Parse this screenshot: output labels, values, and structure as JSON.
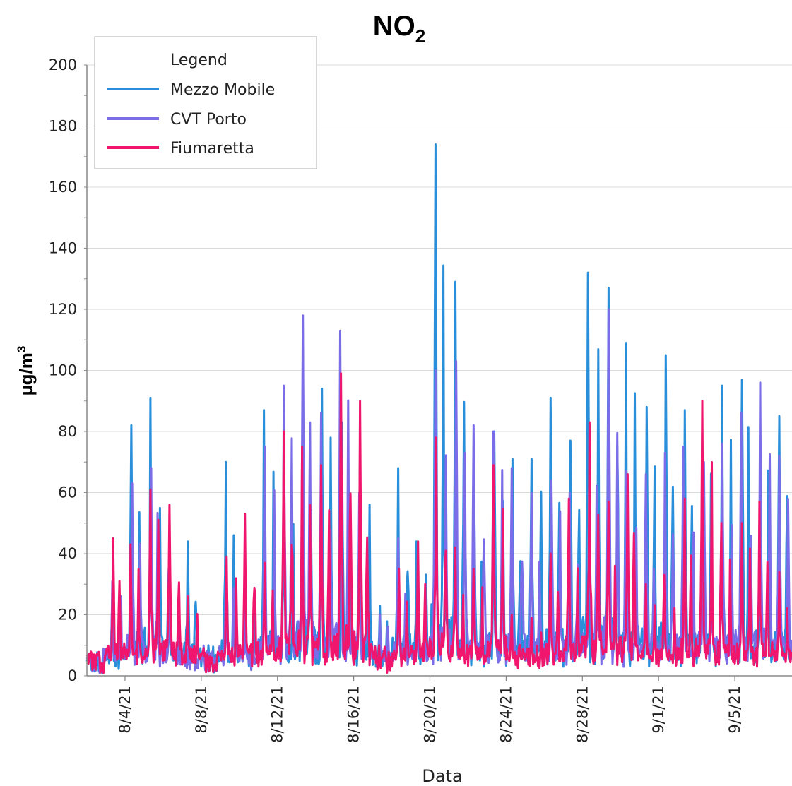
{
  "chart_data": {
    "type": "line",
    "title": "NO",
    "title_subscript": "2",
    "xlabel": "Data",
    "ylabel": "µg/m",
    "ylabel_superscript": "3",
    "ylim": [
      0,
      200
    ],
    "yticks": [
      0,
      20,
      40,
      60,
      80,
      100,
      120,
      140,
      160,
      180,
      200
    ],
    "grid": true,
    "x_start": "2021-08-02",
    "x_end": "2021-09-08",
    "xticks": [
      "8/4/21",
      "8/8/21",
      "8/12/21",
      "8/16/21",
      "8/20/21",
      "8/24/21",
      "8/28/21",
      "9/1/21",
      "9/5/21"
    ],
    "legend": {
      "title": "Legend",
      "position": "top-left"
    },
    "series": [
      {
        "name": "Mezzo Mobile",
        "color": "#2a8fdb",
        "x": [
          "2021-08-02",
          "2021-08-03",
          "2021-08-04",
          "2021-08-05",
          "2021-08-06",
          "2021-08-07",
          "2021-08-08",
          "2021-08-09",
          "2021-08-10",
          "2021-08-11",
          "2021-08-12",
          "2021-08-13",
          "2021-08-14",
          "2021-08-15",
          "2021-08-16",
          "2021-08-17",
          "2021-08-18",
          "2021-08-19",
          "2021-08-20",
          "2021-08-21",
          "2021-08-22",
          "2021-08-23",
          "2021-08-24",
          "2021-08-25",
          "2021-08-26",
          "2021-08-27",
          "2021-08-28",
          "2021-08-29",
          "2021-08-30",
          "2021-08-31",
          "2021-09-01",
          "2021-09-02",
          "2021-09-03",
          "2021-09-04",
          "2021-09-05",
          "2021-09-06",
          "2021-09-07",
          "2021-09-08"
        ],
        "y": [
          6,
          25,
          82,
          91,
          35,
          44,
          10,
          70,
          36,
          87,
          64,
          107,
          94,
          83,
          75,
          23,
          68,
          44,
          174,
          129,
          51,
          80,
          71,
          71,
          91,
          77,
          132,
          127,
          109,
          88,
          105,
          87,
          81,
          95,
          97,
          82,
          85,
          66
        ]
      },
      {
        "name": "CVT Porto",
        "color": "#7b6ce8",
        "x": [
          "2021-08-02",
          "2021-08-03",
          "2021-08-04",
          "2021-08-05",
          "2021-08-06",
          "2021-08-07",
          "2021-08-08",
          "2021-08-09",
          "2021-08-10",
          "2021-08-11",
          "2021-08-12",
          "2021-08-13",
          "2021-08-14",
          "2021-08-15",
          "2021-08-16",
          "2021-08-17",
          "2021-08-18",
          "2021-08-19",
          "2021-08-20",
          "2021-08-21",
          "2021-08-22",
          "2021-08-23",
          "2021-08-24",
          "2021-08-25",
          "2021-08-26",
          "2021-08-27",
          "2021-08-28",
          "2021-08-29",
          "2021-08-30",
          "2021-08-31",
          "2021-09-01",
          "2021-09-02",
          "2021-09-03",
          "2021-09-04",
          "2021-09-05",
          "2021-09-06",
          "2021-09-07",
          "2021-09-08"
        ],
        "y": [
          5,
          31,
          63,
          68,
          28,
          10,
          8,
          35,
          20,
          75,
          95,
          118,
          86,
          113,
          60,
          20,
          45,
          30,
          100,
          103,
          82,
          80,
          68,
          60,
          64,
          60,
          82,
          120,
          67,
          66,
          73,
          75,
          70,
          76,
          86,
          96,
          72,
          61
        ]
      },
      {
        "name": "Fiumaretta",
        "color": "#f0166d",
        "x": [
          "2021-08-02",
          "2021-08-03",
          "2021-08-04",
          "2021-08-05",
          "2021-08-06",
          "2021-08-07",
          "2021-08-08",
          "2021-08-09",
          "2021-08-10",
          "2021-08-11",
          "2021-08-12",
          "2021-08-13",
          "2021-08-14",
          "2021-08-15",
          "2021-08-16",
          "2021-08-17",
          "2021-08-18",
          "2021-08-19",
          "2021-08-20",
          "2021-08-21",
          "2021-08-22",
          "2021-08-23",
          "2021-08-24",
          "2021-08-25",
          "2021-08-26",
          "2021-08-27",
          "2021-08-28",
          "2021-08-29",
          "2021-08-30",
          "2021-08-31",
          "2021-09-01",
          "2021-09-02",
          "2021-09-03",
          "2021-09-04",
          "2021-09-05",
          "2021-09-06",
          "2021-09-07",
          "2021-09-08"
        ],
        "y": [
          7,
          45,
          43,
          61,
          56,
          26,
          7,
          39,
          53,
          37,
          80,
          75,
          69,
          99,
          90,
          10,
          35,
          44,
          78,
          42,
          35,
          69,
          20,
          19,
          40,
          58,
          83,
          57,
          66,
          30,
          33,
          58,
          90,
          50,
          50,
          57,
          34,
          30
        ]
      }
    ]
  }
}
